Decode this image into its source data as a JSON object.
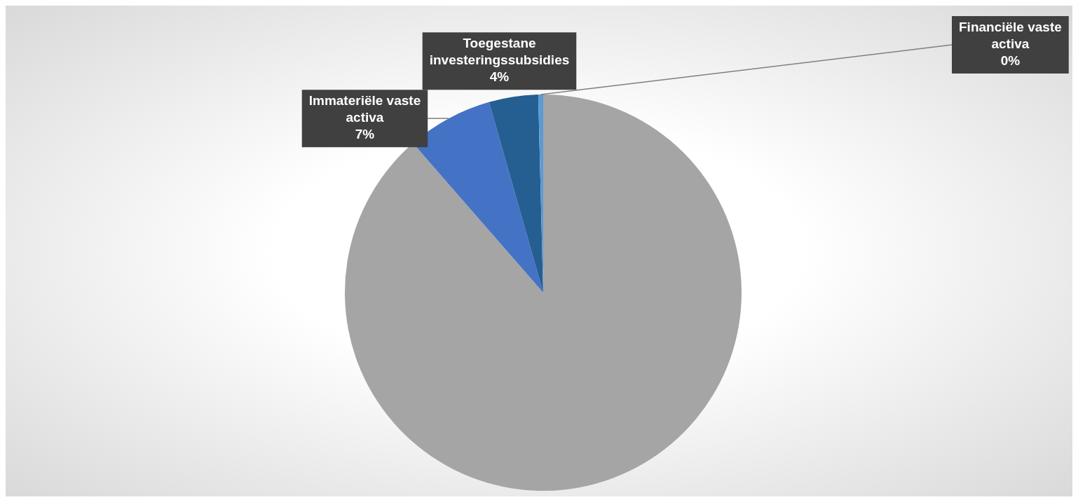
{
  "chart_data": {
    "type": "pie",
    "categories": [
      null,
      "Immateriële vaste activa",
      "Toegestane investeringssubsidies",
      "Financiële vaste activa"
    ],
    "values": [
      88.6,
      7,
      4,
      0.4
    ],
    "colors": [
      "#a5a5a5",
      "#4472c4",
      "#255e91",
      "#5b9bd5"
    ],
    "value_labels": [
      null,
      "7%",
      "4%",
      "0%"
    ],
    "legend": false
  }
}
